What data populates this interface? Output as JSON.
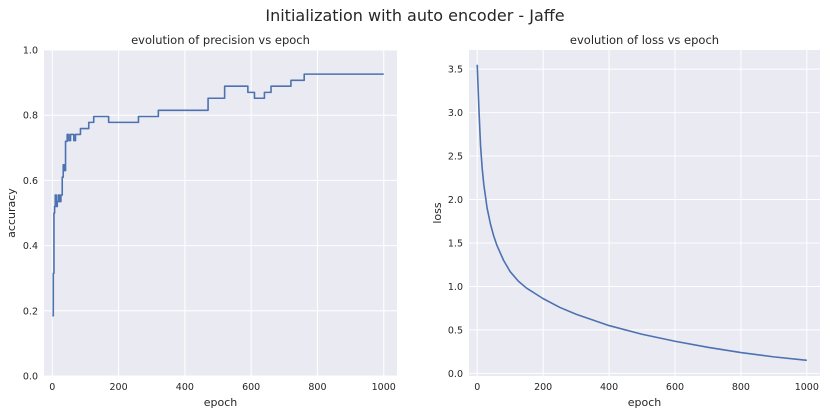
{
  "figure": {
    "title": "Initialization with auto encoder - Jaffe"
  },
  "chart_data": [
    {
      "type": "line",
      "title": "evolution of precision vs epoch",
      "xlabel": "epoch",
      "ylabel": "accuracy",
      "xlim": [
        -25,
        1040
      ],
      "ylim": [
        0.0,
        1.0
      ],
      "xticks": [
        0,
        200,
        400,
        600,
        800,
        1000
      ],
      "yticks": [
        0.0,
        0.2,
        0.4,
        0.6,
        0.8,
        1.0
      ],
      "xtick_labels": [
        "0",
        "200",
        "400",
        "600",
        "800",
        "1000"
      ],
      "ytick_labels": [
        "0.0",
        "0.2",
        "0.4",
        "0.6",
        "0.8",
        "1.0"
      ],
      "grid": true,
      "step": true,
      "series_color": "#4C72B0",
      "series": [
        {
          "x": [
            0,
            3,
            5,
            7,
            9,
            12,
            15,
            18,
            22,
            26,
            30,
            33,
            36,
            40,
            45,
            50,
            55,
            60,
            65,
            70,
            78,
            85,
            95,
            110,
            125,
            170,
            260,
            320,
            460,
            470,
            520,
            590,
            610,
            640,
            660,
            720,
            760,
            1000
          ],
          "y": [
            0.185,
            0.315,
            0.5,
            0.52,
            0.555,
            0.52,
            0.535,
            0.555,
            0.535,
            0.555,
            0.61,
            0.648,
            0.63,
            0.72,
            0.741,
            0.722,
            0.741,
            0.741,
            0.722,
            0.741,
            0.741,
            0.759,
            0.759,
            0.778,
            0.796,
            0.778,
            0.796,
            0.815,
            0.815,
            0.852,
            0.889,
            0.87,
            0.852,
            0.87,
            0.889,
            0.907,
            0.926,
            0.926
          ]
        }
      ]
    },
    {
      "type": "line",
      "title": "evolution of loss vs epoch",
      "xlabel": "epoch",
      "ylabel": "loss",
      "xlim": [
        -25,
        1040
      ],
      "ylim": [
        -0.03,
        3.72
      ],
      "xticks": [
        0,
        200,
        400,
        600,
        800,
        1000
      ],
      "yticks": [
        0.0,
        0.5,
        1.0,
        1.5,
        2.0,
        2.5,
        3.0,
        3.5
      ],
      "xtick_labels": [
        "0",
        "200",
        "400",
        "600",
        "800",
        "1000"
      ],
      "ytick_labels": [
        "0.0",
        "0.5",
        "1.0",
        "1.5",
        "2.0",
        "2.5",
        "3.0",
        "3.5"
      ],
      "grid": true,
      "step": false,
      "series_color": "#4C72B0",
      "series": [
        {
          "x": [
            0,
            5,
            10,
            15,
            20,
            30,
            40,
            50,
            60,
            80,
            100,
            125,
            150,
            200,
            250,
            300,
            400,
            500,
            600,
            700,
            800,
            900,
            1000
          ],
          "y": [
            3.55,
            3.05,
            2.62,
            2.36,
            2.17,
            1.9,
            1.72,
            1.58,
            1.47,
            1.3,
            1.17,
            1.06,
            0.98,
            0.86,
            0.76,
            0.68,
            0.55,
            0.45,
            0.37,
            0.3,
            0.24,
            0.19,
            0.15
          ]
        }
      ]
    }
  ]
}
